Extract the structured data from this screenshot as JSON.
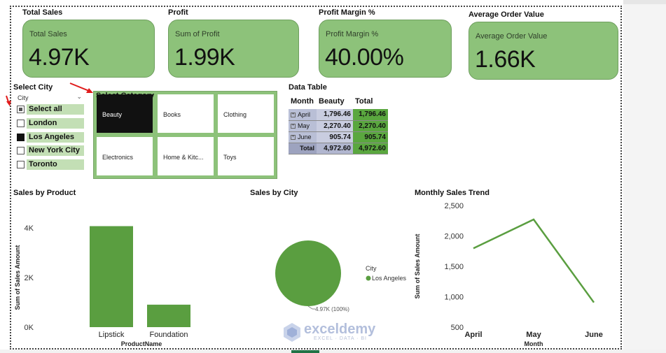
{
  "kpis": [
    {
      "title": "Total Sales",
      "sub": "Total Sales",
      "value": "4.97K"
    },
    {
      "title": "Profit",
      "sub": "Sum of Profit",
      "value": "1.99K"
    },
    {
      "title": "Profit Margin %",
      "sub": "Profit Margin %",
      "value": "40.00%"
    },
    {
      "title": "Average Order Value",
      "sub": "Average Order Value",
      "value": "1.66K"
    }
  ],
  "city_slicer": {
    "title": "Select City",
    "header": "City",
    "items": [
      {
        "label": "Select all",
        "state": "partial"
      },
      {
        "label": "London",
        "state": "off"
      },
      {
        "label": "Los Angeles",
        "state": "on"
      },
      {
        "label": "New York City",
        "state": "off"
      },
      {
        "label": "Toronto",
        "state": "off"
      }
    ]
  },
  "category_slicer": {
    "title": "Select Category",
    "tiles": [
      "Beauty",
      "Books",
      "Clothing",
      "Electronics",
      "Home & Kitc...",
      "Toys"
    ],
    "selected": "Beauty"
  },
  "data_table": {
    "title": "Data Table",
    "headers": [
      "Month",
      "Beauty",
      "Total"
    ],
    "rows": [
      {
        "month": "April",
        "beauty": "1,796.46",
        "total": "1,796.46"
      },
      {
        "month": "May",
        "beauty": "2,270.40",
        "total": "2,270.40"
      },
      {
        "month": "June",
        "beauty": "905.74",
        "total": "905.74"
      }
    ],
    "total_row": {
      "month": "Total",
      "beauty": "4,972.60",
      "total": "4,972.60"
    }
  },
  "colors": {
    "accent": "#5a9e40",
    "card": "#8dc27a",
    "selected_tile": "#111111"
  },
  "watermark": {
    "name": "exceldemy",
    "tagline": "EXCEL · DATA · BI"
  },
  "chart_data": [
    {
      "type": "bar",
      "title": "Sales by Product",
      "categories": [
        "Lipstick",
        "Foundation"
      ],
      "values": [
        4070,
        905.74
      ],
      "xlabel": "ProductName",
      "ylabel": "Sum of Sales Amount",
      "yticks": [
        "0K",
        "2K",
        "4K"
      ],
      "ylim": [
        0,
        4000
      ]
    },
    {
      "type": "pie",
      "title": "Sales by City",
      "legend_title": "City",
      "legend": [
        "Los Angeles"
      ],
      "values": [
        4970
      ],
      "data_label": "4.97K (100%)"
    },
    {
      "type": "line",
      "title": "Monthly Sales Trend",
      "categories": [
        "April",
        "May",
        "June"
      ],
      "values": [
        1796.46,
        2270.4,
        905.74
      ],
      "xlabel": "Month",
      "ylabel": "Sum of Sales Amount",
      "yticks": [
        "500",
        "1,000",
        "1,500",
        "2,000",
        "2,500"
      ],
      "ylim": [
        500,
        2500
      ]
    }
  ]
}
